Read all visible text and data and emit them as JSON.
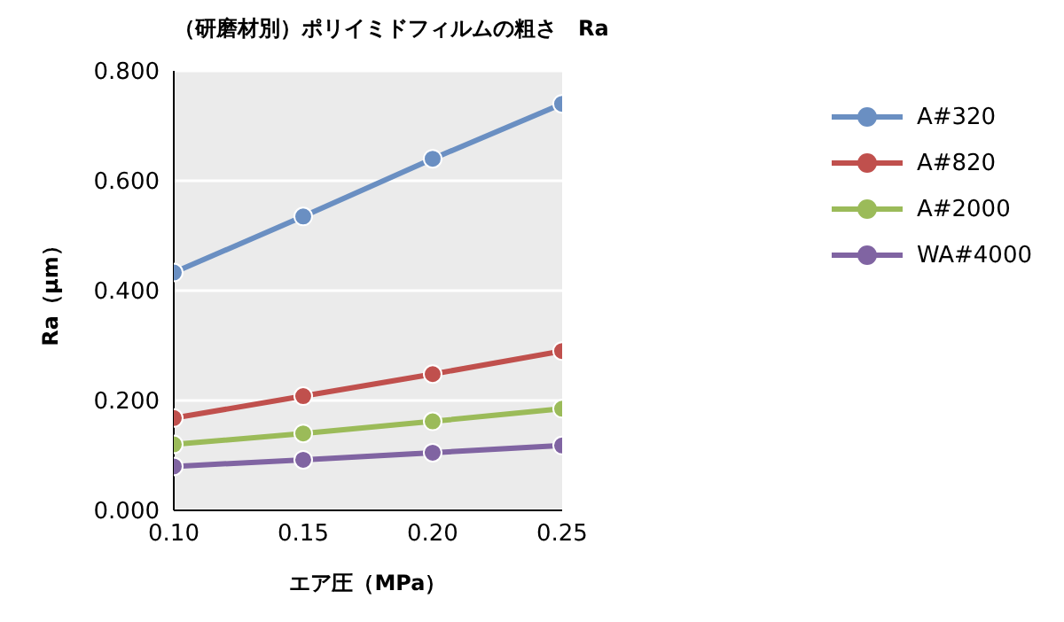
{
  "chart_data": {
    "type": "line",
    "title": "（研磨材別）ポリイミドフィルムの粗さ　Ra",
    "xlabel": "エア圧（MPa）",
    "ylabel": "Ra（μm）",
    "x": [
      0.1,
      0.15,
      0.2,
      0.25
    ],
    "series": [
      {
        "name": "A#320",
        "color": "#6a8fc2",
        "values": [
          0.433,
          0.535,
          0.64,
          0.74
        ]
      },
      {
        "name": "A#820",
        "color": "#c0504d",
        "values": [
          0.168,
          0.208,
          0.248,
          0.29
        ]
      },
      {
        "name": "A#2000",
        "color": "#9bbb59",
        "values": [
          0.12,
          0.14,
          0.162,
          0.185
        ]
      },
      {
        "name": "WA#4000",
        "color": "#8064a2",
        "values": [
          0.08,
          0.092,
          0.105,
          0.118
        ]
      }
    ],
    "xlim": [
      0.1,
      0.25
    ],
    "xticks": [
      {
        "value": 0.1,
        "label": "0.10"
      },
      {
        "value": 0.15,
        "label": "0.15"
      },
      {
        "value": 0.2,
        "label": "0.20"
      },
      {
        "value": 0.25,
        "label": "0.25"
      }
    ],
    "ylim": [
      0,
      0.8
    ],
    "yticks": [
      {
        "value": 0,
        "label": "0.000"
      },
      {
        "value": 0.2,
        "label": "0.200"
      },
      {
        "value": 0.4,
        "label": "0.400"
      },
      {
        "value": 0.6,
        "label": "0.600"
      },
      {
        "value": 0.8,
        "label": "0.800"
      }
    ],
    "grid": "y",
    "legend": "right",
    "marker": "circle",
    "line_style": "solid"
  }
}
